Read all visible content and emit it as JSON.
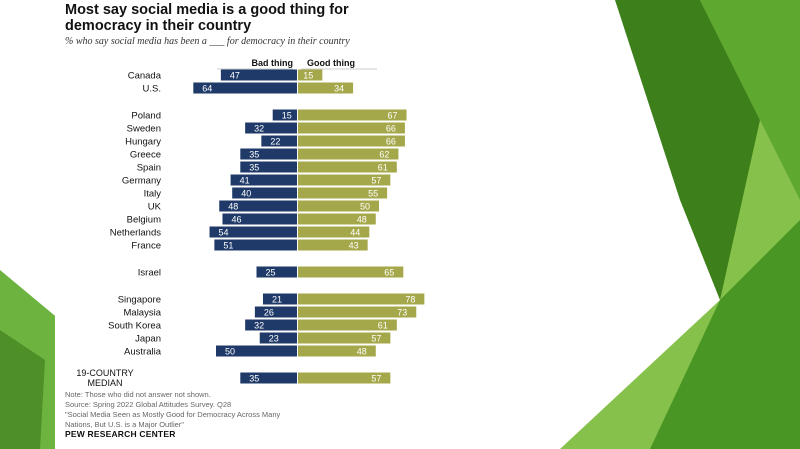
{
  "title": "Most say social media is a good thing for democracy in their country",
  "subtitle": "% who say social media has been a ___ for democracy in their country",
  "colors": {
    "bad": "#1f3a68",
    "good": "#a5a84a",
    "green_dark": "#3f8a1c",
    "green_light": "#7fc241"
  },
  "chart_data": {
    "type": "bar",
    "series": [
      {
        "name": "Bad thing",
        "color": "#1f3a68",
        "values": [
          47,
          64,
          15,
          32,
          22,
          35,
          35,
          41,
          40,
          48,
          46,
          54,
          51,
          25,
          21,
          26,
          32,
          23,
          50,
          35
        ]
      },
      {
        "name": "Good thing",
        "color": "#a5a84a",
        "values": [
          15,
          34,
          67,
          66,
          66,
          62,
          61,
          57,
          55,
          50,
          48,
          44,
          43,
          65,
          78,
          73,
          61,
          57,
          48,
          57
        ]
      }
    ],
    "categories": [
      "Canada",
      "U.S.",
      "Poland",
      "Sweden",
      "Hungary",
      "Greece",
      "Spain",
      "Germany",
      "Italy",
      "UK",
      "Belgium",
      "Netherlands",
      "France",
      "Israel",
      "Singapore",
      "Malaysia",
      "South Korea",
      "Japan",
      "Australia",
      "19-COUNTRY MEDIAN"
    ],
    "groups": [
      [
        0,
        1
      ],
      [
        2,
        3,
        4,
        5,
        6,
        7,
        8,
        9,
        10,
        11,
        12
      ],
      [
        13
      ],
      [
        14,
        15,
        16,
        17,
        18
      ],
      [
        19
      ]
    ],
    "orientation": "diverging-horizontal",
    "legend_placement": "top",
    "grid": false
  },
  "notes": [
    "Note: Those who did not answer not shown.",
    "Source: Spring 2022 Global Attitudes Survey. Q28",
    "\"Social Media Seen as Mostly Good for Democracy Across Many",
    "Nations, But U.S. is a Major Outlier\""
  ],
  "credit": "PEW RESEARCH CENTER"
}
